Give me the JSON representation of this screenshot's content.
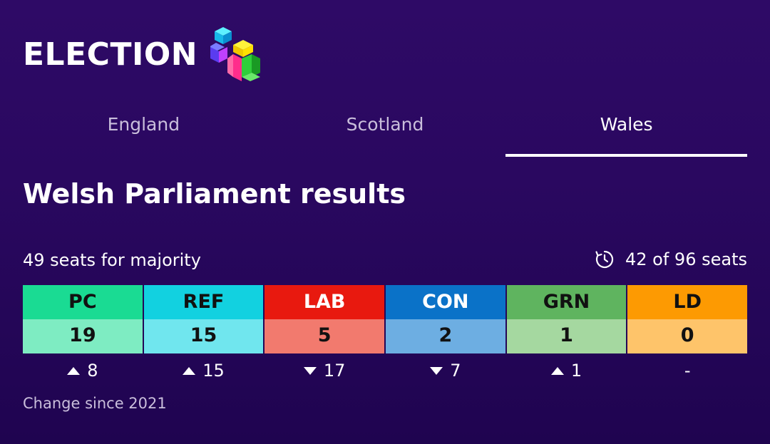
{
  "header": {
    "title": "ELECTION"
  },
  "tabs": [
    {
      "label": "England",
      "active": false
    },
    {
      "label": "Scotland",
      "active": false
    },
    {
      "label": "Wales",
      "active": true
    }
  ],
  "page_title": "Welsh Parliament results",
  "summary": {
    "majority_text": "49 seats for majority",
    "progress_text": "42 of 96 seats",
    "progress_icon": "timer-icon"
  },
  "parties": [
    {
      "code": "PC",
      "seats": "19",
      "change": "8",
      "direction": "up",
      "header_color": "#1adb93",
      "seats_color": "#7eecc2",
      "header_text_color": "#111111"
    },
    {
      "code": "REF",
      "seats": "15",
      "change": "15",
      "direction": "up",
      "header_color": "#12d1e0",
      "seats_color": "#70e6ee",
      "header_text_color": "#111111"
    },
    {
      "code": "LAB",
      "seats": "5",
      "change": "17",
      "direction": "down",
      "header_color": "#e8190f",
      "seats_color": "#f27a6e",
      "header_text_color": "#ffffff"
    },
    {
      "code": "CON",
      "seats": "2",
      "change": "7",
      "direction": "down",
      "header_color": "#0a72c8",
      "seats_color": "#6daee2",
      "header_text_color": "#ffffff"
    },
    {
      "code": "GRN",
      "seats": "1",
      "change": "1",
      "direction": "up",
      "header_color": "#5fb45f",
      "seats_color": "#a5d8a0",
      "header_text_color": "#111111"
    },
    {
      "code": "LD",
      "seats": "0",
      "change": "-",
      "direction": "none",
      "header_color": "#fd9a02",
      "seats_color": "#fec46a",
      "header_text_color": "#111111"
    }
  ],
  "footnote": "Change since 2021"
}
